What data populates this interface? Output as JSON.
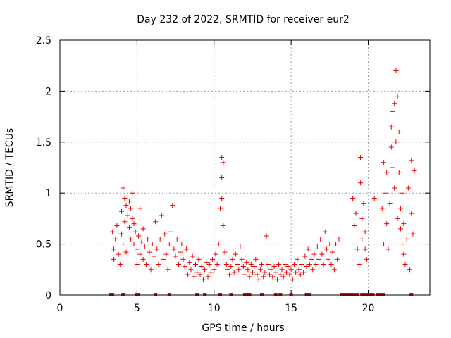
{
  "chart_data": {
    "type": "scatter",
    "title": "Day 232 of 2022, SRMTID for receiver eur2",
    "xlabel": "GPS time / hours",
    "ylabel": "SRMTID / TECUs",
    "xlim": [
      0,
      24
    ],
    "ylim": [
      0,
      2.5
    ],
    "x_ticks": [
      0,
      5,
      10,
      15,
      20
    ],
    "y_ticks": [
      0,
      0.5,
      1,
      1.5,
      2,
      2.5
    ],
    "y_tick_labels": [
      "0",
      "0.5",
      "1",
      "1.5",
      "2",
      "2.5"
    ],
    "grid": true,
    "marker": "plus",
    "color": "#ee0000",
    "series": [
      {
        "name": "SRMTID",
        "points": [
          [
            3.4,
            0.62
          ],
          [
            3.5,
            0.45
          ],
          [
            3.5,
            0.35
          ],
          [
            3.6,
            0.55
          ],
          [
            3.7,
            0.68
          ],
          [
            3.8,
            0.4
          ],
          [
            3.9,
            0.3
          ],
          [
            4.0,
            0.82
          ],
          [
            4.0,
            0.6
          ],
          [
            4.1,
            1.05
          ],
          [
            4.1,
            0.5
          ],
          [
            4.2,
            0.95
          ],
          [
            4.2,
            0.72
          ],
          [
            4.3,
            0.88
          ],
          [
            4.3,
            0.42
          ],
          [
            4.4,
            0.78
          ],
          [
            4.5,
            0.92
          ],
          [
            4.5,
            0.66
          ],
          [
            4.6,
            0.85
          ],
          [
            4.6,
            0.55
          ],
          [
            4.7,
            1.0
          ],
          [
            4.7,
            0.75
          ],
          [
            4.8,
            0.7
          ],
          [
            4.8,
            0.5
          ],
          [
            4.9,
            0.62
          ],
          [
            5.0,
            0.45
          ],
          [
            5.0,
            0.3
          ],
          [
            5.1,
            0.58
          ],
          [
            5.2,
            0.85
          ],
          [
            5.2,
            0.4
          ],
          [
            5.3,
            0.52
          ],
          [
            5.4,
            0.65
          ],
          [
            5.4,
            0.35
          ],
          [
            5.5,
            0.48
          ],
          [
            5.6,
            0.3
          ],
          [
            5.7,
            0.55
          ],
          [
            5.8,
            0.42
          ],
          [
            5.9,
            0.25
          ],
          [
            6.0,
            0.5
          ],
          [
            6.1,
            0.38
          ],
          [
            6.2,
            0.72
          ],
          [
            6.3,
            0.45
          ],
          [
            6.4,
            0.3
          ],
          [
            6.5,
            0.55
          ],
          [
            6.6,
            0.78
          ],
          [
            6.7,
            0.35
          ],
          [
            6.8,
            0.6
          ],
          [
            6.9,
            0.4
          ],
          [
            7.0,
            0.25
          ],
          [
            7.1,
            0.5
          ],
          [
            7.2,
            0.62
          ],
          [
            7.3,
            0.88
          ],
          [
            7.4,
            0.45
          ],
          [
            7.5,
            0.38
          ],
          [
            7.6,
            0.55
          ],
          [
            7.7,
            0.3
          ],
          [
            7.8,
            0.42
          ],
          [
            7.9,
            0.5
          ],
          [
            8.0,
            0.35
          ],
          [
            8.1,
            0.28
          ],
          [
            8.2,
            0.45
          ],
          [
            8.3,
            0.2
          ],
          [
            8.4,
            0.32
          ],
          [
            8.5,
            0.25
          ],
          [
            8.6,
            0.38
          ],
          [
            8.7,
            0.18
          ],
          [
            8.8,
            0.3
          ],
          [
            8.9,
            0.22
          ],
          [
            9.0,
            0.35
          ],
          [
            9.1,
            0.2
          ],
          [
            9.2,
            0.28
          ],
          [
            9.3,
            0.15
          ],
          [
            9.4,
            0.25
          ],
          [
            9.5,
            0.32
          ],
          [
            9.6,
            0.18
          ],
          [
            9.7,
            0.3
          ],
          [
            9.8,
            0.22
          ],
          [
            9.9,
            0.35
          ],
          [
            10.0,
            0.25
          ],
          [
            10.1,
            0.4
          ],
          [
            10.2,
            0.3
          ],
          [
            10.3,
            0.5
          ],
          [
            10.4,
            0.85
          ],
          [
            10.5,
            1.35
          ],
          [
            10.5,
            1.15
          ],
          [
            10.5,
            0.95
          ],
          [
            10.6,
            0.68
          ],
          [
            10.6,
            1.3
          ],
          [
            10.7,
            0.42
          ],
          [
            10.8,
            0.3
          ],
          [
            10.9,
            0.25
          ],
          [
            11.0,
            0.2
          ],
          [
            11.1,
            0.28
          ],
          [
            11.2,
            0.35
          ],
          [
            11.3,
            0.22
          ],
          [
            11.4,
            0.4
          ],
          [
            11.5,
            0.3
          ],
          [
            11.6,
            0.25
          ],
          [
            11.7,
            0.48
          ],
          [
            11.8,
            0.35
          ],
          [
            11.9,
            0.28
          ],
          [
            12.0,
            0.2
          ],
          [
            12.1,
            0.32
          ],
          [
            12.2,
            0.25
          ],
          [
            12.3,
            0.18
          ],
          [
            12.4,
            0.3
          ],
          [
            12.5,
            0.22
          ],
          [
            12.6,
            0.28
          ],
          [
            12.7,
            0.35
          ],
          [
            12.8,
            0.2
          ],
          [
            12.9,
            0.15
          ],
          [
            13.0,
            0.25
          ],
          [
            13.1,
            0.3
          ],
          [
            13.2,
            0.18
          ],
          [
            13.3,
            0.22
          ],
          [
            13.4,
            0.58
          ],
          [
            13.5,
            0.3
          ],
          [
            13.6,
            0.2
          ],
          [
            13.7,
            0.25
          ],
          [
            13.8,
            0.18
          ],
          [
            13.9,
            0.28
          ],
          [
            14.0,
            0.22
          ],
          [
            14.1,
            0.15
          ],
          [
            14.2,
            0.3
          ],
          [
            14.3,
            0.2
          ],
          [
            14.4,
            0.25
          ],
          [
            14.5,
            0.18
          ],
          [
            14.6,
            0.3
          ],
          [
            14.7,
            0.22
          ],
          [
            14.8,
            0.28
          ],
          [
            14.9,
            0.2
          ],
          [
            15.0,
            0.25
          ],
          [
            15.1,
            0.15
          ],
          [
            15.2,
            0.3
          ],
          [
            15.3,
            0.22
          ],
          [
            15.4,
            0.35
          ],
          [
            15.5,
            0.25
          ],
          [
            15.6,
            0.2
          ],
          [
            15.7,
            0.3
          ],
          [
            15.8,
            0.22
          ],
          [
            15.9,
            0.38
          ],
          [
            16.0,
            0.28
          ],
          [
            16.1,
            0.45
          ],
          [
            16.2,
            0.3
          ],
          [
            16.3,
            0.35
          ],
          [
            16.4,
            0.25
          ],
          [
            16.5,
            0.4
          ],
          [
            16.6,
            0.3
          ],
          [
            16.7,
            0.48
          ],
          [
            16.8,
            0.35
          ],
          [
            16.9,
            0.55
          ],
          [
            17.0,
            0.4
          ],
          [
            17.1,
            0.3
          ],
          [
            17.2,
            0.62
          ],
          [
            17.3,
            0.45
          ],
          [
            17.4,
            0.35
          ],
          [
            17.5,
            0.5
          ],
          [
            17.6,
            0.3
          ],
          [
            17.7,
            0.42
          ],
          [
            17.8,
            0.25
          ],
          [
            17.9,
            0.5
          ],
          [
            18.0,
            0.35
          ],
          [
            18.1,
            0.55
          ],
          [
            19.0,
            0.95
          ],
          [
            19.1,
            0.68
          ],
          [
            19.2,
            0.8
          ],
          [
            19.3,
            0.45
          ],
          [
            19.4,
            0.3
          ],
          [
            19.5,
            1.35
          ],
          [
            19.5,
            1.1
          ],
          [
            19.6,
            0.75
          ],
          [
            19.6,
            0.55
          ],
          [
            19.7,
            0.9
          ],
          [
            19.8,
            0.45
          ],
          [
            19.8,
            0.62
          ],
          [
            19.9,
            0.35
          ],
          [
            20.4,
            0.95
          ],
          [
            20.9,
            0.85
          ],
          [
            21.0,
            1.3
          ],
          [
            21.0,
            0.5
          ],
          [
            21.1,
            1.55
          ],
          [
            21.1,
            1.0
          ],
          [
            21.2,
            0.7
          ],
          [
            21.2,
            1.2
          ],
          [
            21.3,
            0.45
          ],
          [
            21.4,
            0.9
          ],
          [
            21.5,
            1.45
          ],
          [
            21.5,
            1.65
          ],
          [
            21.6,
            1.8
          ],
          [
            21.6,
            1.25
          ],
          [
            21.7,
            1.88
          ],
          [
            21.7,
            1.05
          ],
          [
            21.8,
            2.2
          ],
          [
            21.8,
            1.5
          ],
          [
            21.9,
            1.95
          ],
          [
            21.9,
            0.75
          ],
          [
            22.0,
            1.6
          ],
          [
            22.0,
            1.2
          ],
          [
            22.1,
            0.65
          ],
          [
            22.1,
            0.85
          ],
          [
            22.2,
            0.5
          ],
          [
            22.2,
            1.0
          ],
          [
            22.3,
            0.4
          ],
          [
            22.3,
            0.7
          ],
          [
            22.4,
            0.3
          ],
          [
            22.5,
            0.55
          ],
          [
            22.6,
            1.05
          ],
          [
            22.7,
            0.25
          ],
          [
            22.8,
            1.32
          ],
          [
            22.8,
            0.8
          ],
          [
            22.9,
            0.6
          ],
          [
            23.0,
            1.22
          ]
        ]
      }
    ]
  }
}
